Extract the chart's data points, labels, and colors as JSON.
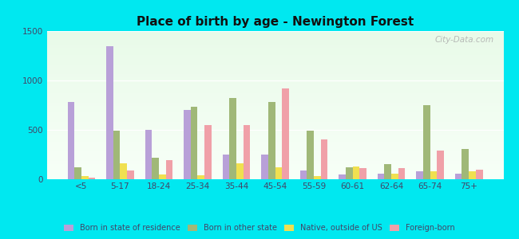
{
  "title": "Place of birth by age - Newington Forest",
  "categories": [
    "<5",
    "5-17",
    "18-24",
    "25-34",
    "35-44",
    "45-54",
    "55-59",
    "60-61",
    "62-64",
    "65-74",
    "75+"
  ],
  "series": {
    "Born in state of residence": [
      780,
      1350,
      500,
      700,
      250,
      250,
      90,
      50,
      60,
      80,
      60
    ],
    "Born in other state": [
      120,
      490,
      220,
      730,
      820,
      780,
      490,
      120,
      150,
      750,
      310
    ],
    "Native, outside of US": [
      30,
      160,
      50,
      40,
      160,
      120,
      30,
      130,
      60,
      80,
      80
    ],
    "Foreign-born": [
      20,
      90,
      190,
      550,
      550,
      920,
      400,
      110,
      110,
      290,
      100
    ]
  },
  "colors": {
    "Born in state of residence": "#b8a0d8",
    "Born in other state": "#a0b878",
    "Native, outside of US": "#f0e050",
    "Foreign-born": "#f0a0a8"
  },
  "ylim": [
    0,
    1500
  ],
  "yticks": [
    0,
    500,
    1000,
    1500
  ],
  "outer_background": "#00e8f0",
  "watermark": "City-Data.com",
  "bar_width": 0.18
}
